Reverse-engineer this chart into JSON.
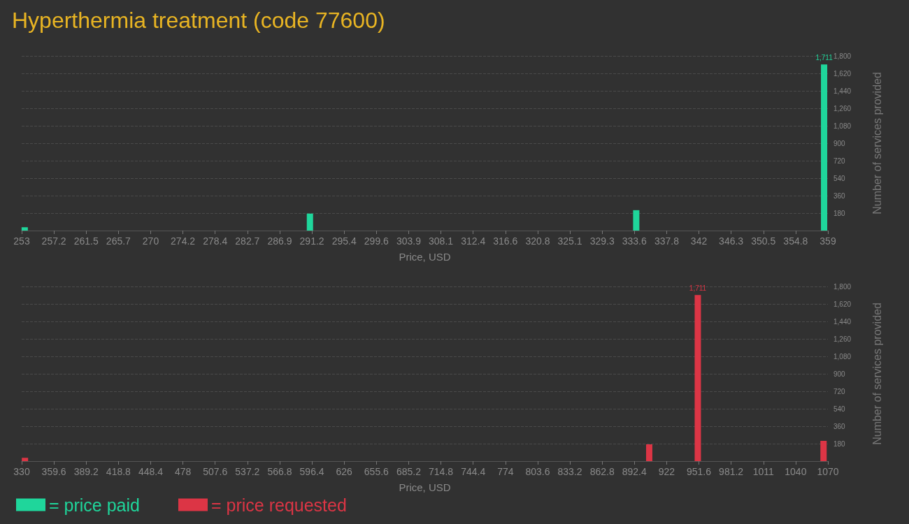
{
  "chart_data": [
    {
      "type": "bar",
      "title": "Hyperthermia treatment (code 77600)",
      "xlabel": "Price, USD",
      "ylabel": "Number of services provided",
      "x": [
        253.4,
        290.9,
        333.8,
        358.5
      ],
      "series": [
        {
          "name": "= price paid",
          "color": "#1fd69b",
          "values": [
            35,
            175,
            210,
            1711
          ],
          "value_labels": [
            null,
            null,
            null,
            "1,711"
          ]
        }
      ],
      "xlim": [
        253,
        359
      ],
      "xticks": [
        253,
        {
          "value": 257.24,
          "label": "257.2"
        },
        {
          "value": 261.48,
          "label": "261.5"
        },
        {
          "value": 265.72,
          "label": "265.7"
        },
        {
          "value": 269.96,
          "label": "270"
        },
        274.2,
        {
          "value": 278.44,
          "label": "278.4"
        },
        {
          "value": 282.68,
          "label": "282.7"
        },
        {
          "value": 286.92,
          "label": "286.9"
        },
        {
          "value": 291.16,
          "label": "291.2"
        },
        295.4,
        {
          "value": 299.64,
          "label": "299.6"
        },
        {
          "value": 303.88,
          "label": "303.9"
        },
        {
          "value": 308.12,
          "label": "308.1"
        },
        {
          "value": 312.36,
          "label": "312.4"
        },
        316.6,
        {
          "value": 320.84,
          "label": "320.8"
        },
        {
          "value": 325.08,
          "label": "325.1"
        },
        {
          "value": 329.32,
          "label": "329.3"
        },
        {
          "value": 333.56,
          "label": "333.6"
        },
        337.8,
        {
          "value": 342.04,
          "label": "342"
        },
        {
          "value": 346.28,
          "label": "346.3"
        },
        {
          "value": 350.52,
          "label": "350.5"
        },
        {
          "value": 354.76,
          "label": "354.8"
        },
        359
      ],
      "ylim": [
        0,
        1800
      ],
      "yticks": [
        {
          "value": 0,
          "label": null
        },
        180,
        360,
        540,
        720,
        900,
        {
          "value": 1080,
          "label": "1,080"
        },
        {
          "value": 1260,
          "label": "1,260"
        },
        {
          "value": 1440,
          "label": "1,440"
        },
        {
          "value": 1620,
          "label": "1,620"
        },
        {
          "value": 1800,
          "label": "1,800"
        }
      ],
      "grid": "y",
      "legend": "bottom left"
    },
    {
      "type": "bar",
      "xlabel": "Price, USD",
      "ylabel": "Number of services provided",
      "x": [
        333,
        906,
        950.6,
        1066
      ],
      "series": [
        {
          "name": "= price requested",
          "color": "#dc3545",
          "values": [
            35,
            173,
            1711,
            209
          ],
          "value_labels": [
            null,
            null,
            "1,711",
            null
          ]
        }
      ],
      "xlim": [
        330,
        1070
      ],
      "xticks": [
        330,
        359.6,
        389.2,
        418.8,
        448.4,
        478,
        507.6,
        537.2,
        566.8,
        596.4,
        626,
        655.6,
        685.2,
        714.8,
        744.4,
        774,
        803.6,
        833.2,
        862.8,
        892.4,
        922,
        951.6,
        981.2,
        {
          "value": 1010.8,
          "label": "1011"
        },
        {
          "value": 1040.4,
          "label": "1040"
        },
        1070
      ],
      "ylim": [
        0,
        1800
      ],
      "yticks": [
        {
          "value": 0,
          "label": null
        },
        180,
        360,
        540,
        720,
        900,
        {
          "value": 1080,
          "label": "1,080"
        },
        {
          "value": 1260,
          "label": "1,260"
        },
        {
          "value": 1440,
          "label": "1,440"
        },
        {
          "value": 1620,
          "label": "1,620"
        },
        {
          "value": 1800,
          "label": "1,800"
        }
      ],
      "grid": "y",
      "legend": "bottom left"
    }
  ]
}
